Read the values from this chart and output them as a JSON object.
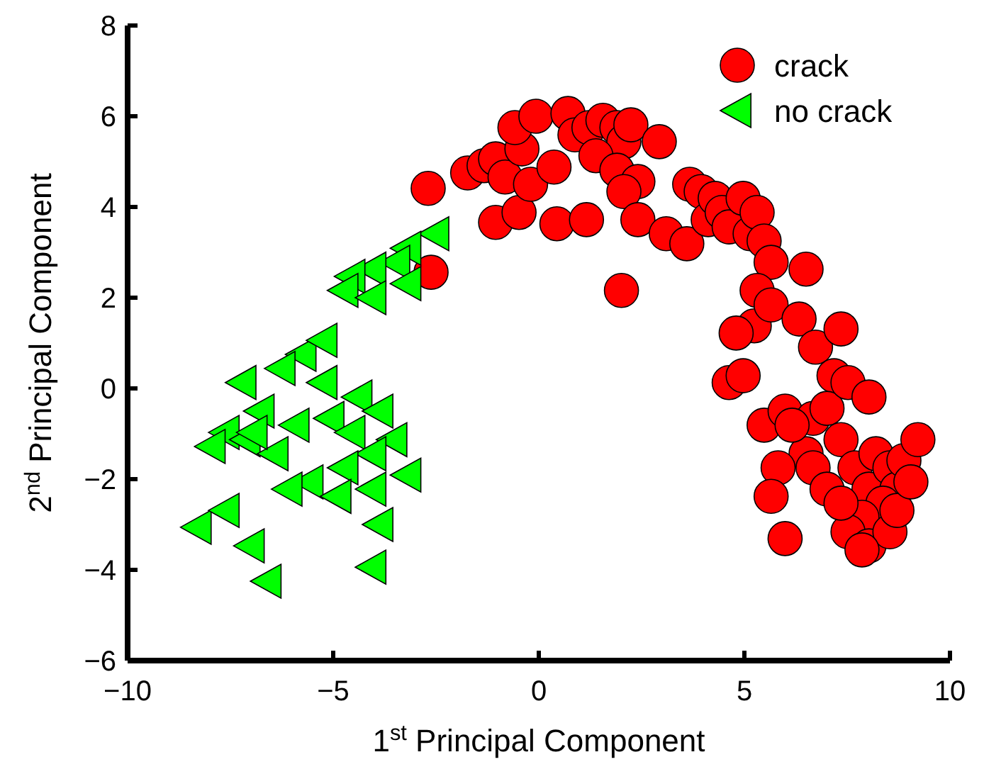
{
  "chart_data": {
    "type": "scatter",
    "xlabel": "1$^{st}$ Principal Component",
    "ylabel": "2$^{nd}$ Principal Component",
    "xlim": [
      -10,
      10
    ],
    "xticks": [
      -10,
      -5,
      0,
      5,
      10
    ],
    "ylim": [
      -6,
      8
    ],
    "yticks": [
      -6,
      -4,
      -2,
      0,
      2,
      4,
      6,
      8
    ],
    "grid": false,
    "legend": "top right",
    "series": [
      {
        "name": "crack",
        "color": "#ff0000",
        "marker": "circle",
        "x": [
          -2.69,
          -2.62,
          -1.73,
          -1.33,
          -1.05,
          -0.82,
          -0.41,
          -0.58,
          -1.05,
          -0.48,
          -0.2,
          -0.07,
          0.37,
          0.44,
          1.16,
          0.71,
          0.88,
          1.22,
          1.56,
          1.9,
          2.07,
          2.24,
          1.39,
          1.9,
          2.41,
          2.07,
          2.93,
          2.41,
          2.01,
          3.1,
          3.6,
          3.67,
          3.95,
          4.12,
          4.29,
          4.46,
          4.63,
          4.97,
          5.14,
          5.31,
          5.48,
          5.65,
          5.31,
          5.24,
          4.8,
          5.65,
          6.5,
          6.33,
          6.73,
          7.35,
          7.18,
          4.63,
          4.97,
          5.48,
          5.99,
          6.67,
          7.01,
          7.52,
          8.03,
          6.5,
          5.82,
          5.65,
          5.99,
          6.67,
          7.01,
          7.35,
          7.69,
          8.03,
          8.2,
          8.54,
          8.71,
          8.88,
          9.22,
          8.37,
          7.86,
          7.52,
          8.03,
          8.54,
          8.71,
          7.86,
          9.05,
          7.35,
          6.16
        ],
        "values": [
          4.41,
          2.56,
          4.75,
          4.91,
          5.06,
          4.66,
          5.28,
          5.75,
          3.66,
          3.88,
          4.5,
          6.0,
          4.88,
          3.63,
          3.72,
          6.06,
          5.59,
          5.75,
          5.91,
          5.75,
          5.44,
          5.81,
          5.13,
          4.81,
          4.56,
          4.34,
          5.44,
          3.72,
          2.16,
          3.41,
          3.19,
          4.5,
          4.34,
          3.72,
          4.19,
          3.88,
          3.56,
          4.19,
          3.41,
          3.88,
          3.25,
          2.78,
          2.16,
          1.38,
          1.22,
          1.84,
          2.63,
          1.53,
          0.91,
          1.31,
          0.28,
          0.13,
          0.28,
          -0.81,
          -0.5,
          -0.66,
          -0.44,
          0.13,
          -0.19,
          -1.44,
          -1.75,
          -2.38,
          -3.31,
          -1.75,
          -2.22,
          -1.13,
          -1.75,
          -2.22,
          -1.44,
          -1.75,
          -2.22,
          -1.59,
          -1.13,
          -2.53,
          -2.84,
          -3.16,
          -3.47,
          -3.16,
          -2.69,
          -3.56,
          -2.06,
          -2.53,
          -0.81
        ]
      },
      {
        "name": "no crack",
        "color": "#00ff00",
        "marker": "triangle",
        "x": [
          -2.52,
          -3.2,
          -3.47,
          -4.05,
          -4.56,
          -4.73,
          -4.05,
          -3.2,
          -4.39,
          -5.24,
          -5.75,
          -6.26,
          -7.21,
          -6.77,
          -7.62,
          -7.11,
          -6.43,
          -5.92,
          -5.07,
          -4.56,
          -3.88,
          -3.54,
          -4.05,
          -4.73,
          -5.58,
          -6.09,
          -4.9,
          -4.05,
          -3.2,
          -3.88,
          -8.3,
          -7.62,
          -7.01,
          -6.6,
          -4.05,
          -5.24,
          -6.94,
          -7.96
        ],
        "values": [
          3.41,
          3.09,
          2.78,
          2.63,
          2.47,
          2.16,
          2.0,
          2.31,
          -0.19,
          0.13,
          0.75,
          0.44,
          0.13,
          -0.5,
          -0.97,
          -1.13,
          -1.44,
          -0.81,
          -0.66,
          -0.97,
          -0.5,
          -1.13,
          -1.44,
          -1.75,
          -2.06,
          -2.22,
          -2.38,
          -2.22,
          -1.91,
          -3.0,
          -3.06,
          -2.69,
          -3.47,
          -4.25,
          -3.94,
          1.06,
          -0.97,
          -1.28
        ]
      }
    ]
  }
}
